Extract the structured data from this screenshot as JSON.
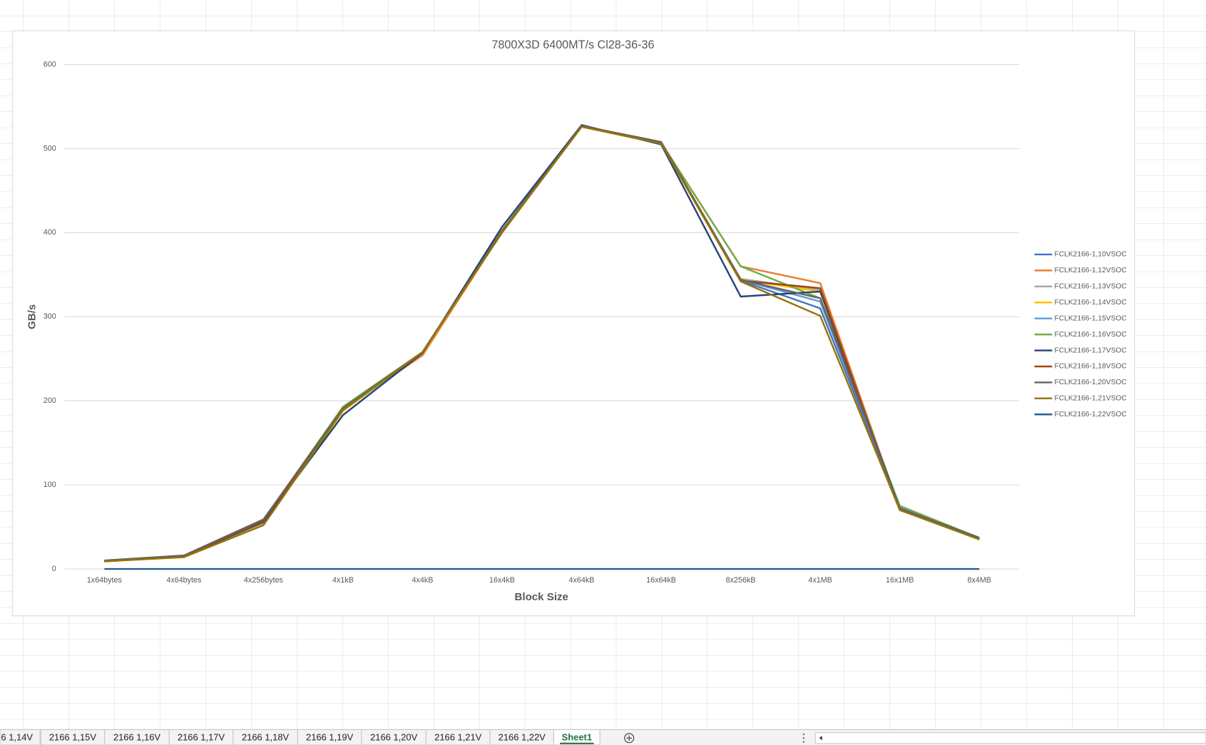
{
  "chart_data": {
    "type": "line",
    "title": "7800X3D 6400MT/s Cl28-36-36",
    "x_label": "Block Size",
    "y_label": "GB/s",
    "categories": [
      "1x64bytes",
      "4x64bytes",
      "4x256bytes",
      "4x1kB",
      "4x4kB",
      "16x4kB",
      "4x64kB",
      "16x64kB",
      "8x256kB",
      "4x1MB",
      "16x1MB",
      "8x4MB"
    ],
    "ylim": [
      0,
      600
    ],
    "yticks": [
      0,
      100,
      200,
      300,
      400,
      500,
      600
    ],
    "grid": true,
    "legend": "right",
    "series": [
      {
        "name": "FCLK2166-1,10VSOC",
        "color": "#4472C4",
        "values": [
          9,
          15,
          55,
          188,
          257,
          402,
          527,
          506,
          343,
          310,
          72,
          36
        ]
      },
      {
        "name": "FCLK2166-1,12VSOC",
        "color": "#ED7D31",
        "values": [
          9,
          15,
          56,
          190,
          254,
          401,
          527,
          507,
          360,
          340,
          71,
          36
        ]
      },
      {
        "name": "FCLK2166-1,13VSOC",
        "color": "#A5A5A5",
        "values": [
          9,
          15,
          56,
          190,
          257,
          401,
          527,
          507,
          345,
          332,
          73,
          37
        ]
      },
      {
        "name": "FCLK2166-1,14VSOC",
        "color": "#FFC000",
        "values": [
          9,
          14,
          53,
          188,
          257,
          401,
          526,
          506,
          344,
          330,
          72,
          36
        ]
      },
      {
        "name": "FCLK2166-1,15VSOC",
        "color": "#5B9BD5",
        "values": [
          9,
          15,
          55,
          189,
          257,
          402,
          527,
          507,
          344,
          318,
          73,
          36
        ]
      },
      {
        "name": "FCLK2166-1,16VSOC",
        "color": "#70AD47",
        "values": [
          10,
          16,
          58,
          193,
          258,
          403,
          527,
          507,
          360,
          322,
          75,
          37
        ]
      },
      {
        "name": "FCLK2166-1,17VSOC",
        "color": "#264478",
        "values": [
          9,
          15,
          56,
          183,
          257,
          407,
          528,
          505,
          324,
          330,
          72,
          37
        ]
      },
      {
        "name": "FCLK2166-1,18VSOC",
        "color": "#9E480E",
        "values": [
          9,
          15,
          57,
          190,
          258,
          402,
          527,
          507,
          343,
          334,
          70,
          36
        ]
      },
      {
        "name": "FCLK2166-1,20VSOC",
        "color": "#636363",
        "values": [
          10,
          16,
          59,
          191,
          258,
          402,
          527,
          508,
          344,
          322,
          72,
          37
        ]
      },
      {
        "name": "FCLK2166-1,21VSOC",
        "color": "#997300",
        "values": [
          9,
          14,
          52,
          189,
          258,
          400,
          526,
          506,
          342,
          301,
          70,
          35
        ]
      },
      {
        "name": "FCLK2166-1,22VSOC",
        "color": "#255E91",
        "values": [
          0,
          0,
          0,
          0,
          0,
          0,
          0,
          0,
          0,
          0,
          0,
          0
        ]
      }
    ]
  },
  "sheet_tabs": [
    "6 1,14V",
    "2166 1,15V",
    "2166 1,16V",
    "2166 1,17V",
    "2166 1,18V",
    "2166 1,19V",
    "2166 1,20V",
    "2166 1,21V",
    "2166 1,22V",
    "Sheet1"
  ],
  "active_tab": 9
}
